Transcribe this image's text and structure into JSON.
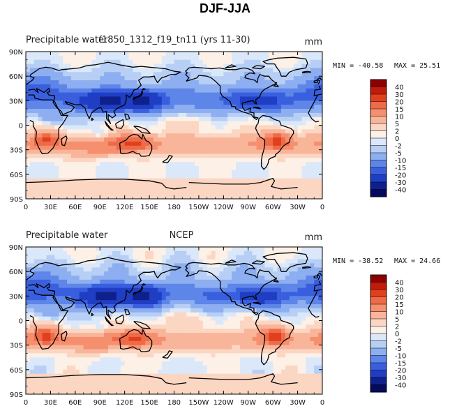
{
  "figure": {
    "title": "DJF-JJA"
  },
  "chart_data": [
    {
      "type": "heatmap",
      "subtitle_left": "Precipitable water",
      "subtitle_center": "f1850_1312_f19_tn11 (yrs 11-30)",
      "units": "mm",
      "min_label": "MIN = -40.58",
      "max_label": "MAX =   25.51",
      "min": -40.58,
      "max": 25.51,
      "lat_range": [
        -90,
        90
      ],
      "lon_range": [
        0,
        360
      ],
      "x_tick_labels": [
        "0",
        "30E",
        "60E",
        "90E",
        "120E",
        "150E",
        "180",
        "150W",
        "120W",
        "90W",
        "60W",
        "30W",
        "0"
      ],
      "y_tick_labels": [
        "90N",
        "60N",
        "30N",
        "0",
        "30S",
        "60S",
        "90S"
      ],
      "colorbar": [
        "40",
        "30",
        "20",
        "15",
        "10",
        "5",
        "2",
        "0",
        "-2",
        "-5",
        "-10",
        "-15",
        "-20",
        "-30",
        "-40"
      ]
    },
    {
      "type": "heatmap",
      "subtitle_left": "Precipitable water",
      "subtitle_center": "NCEP",
      "units": "mm",
      "min_label": "MIN = -38.52",
      "max_label": "MAX =   24.66",
      "min": -38.52,
      "max": 24.66,
      "lat_range": [
        -90,
        90
      ],
      "lon_range": [
        0,
        360
      ],
      "x_tick_labels": [
        "0",
        "30E",
        "60E",
        "90E",
        "120E",
        "150E",
        "180",
        "150W",
        "120W",
        "90W",
        "60W",
        "30W",
        "0"
      ],
      "y_tick_labels": [
        "90N",
        "60N",
        "30N",
        "0",
        "30S",
        "60S",
        "90S"
      ],
      "colorbar": [
        "40",
        "30",
        "20",
        "15",
        "10",
        "5",
        "2",
        "0",
        "-2",
        "-5",
        "-10",
        "-15",
        "-20",
        "-30",
        "-40"
      ]
    }
  ],
  "colors": {
    "bins": [
      "#8c0000",
      "#c41a0a",
      "#e0401e",
      "#ee6a48",
      "#f58f6e",
      "#f8b59a",
      "#fbd6c2",
      "#fdf0e6",
      "#dbe8fa",
      "#b8cff5",
      "#8daef0",
      "#5e86e8",
      "#3a5fde",
      "#1f3ec4",
      "#0e208c",
      "#050a5e"
    ]
  }
}
